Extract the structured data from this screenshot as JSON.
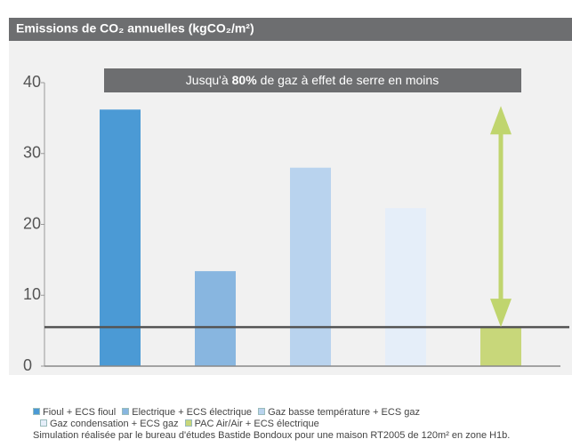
{
  "chart_data": {
    "type": "bar",
    "title": "Emissions de CO₂ annuelles (kgCO₂/m²)",
    "annotation": {
      "before": "Jusqu'à",
      "bold": "80%",
      "after": "de gaz à effet de serre en moins"
    },
    "series": [
      {
        "name": "Fioul + ECS fioul",
        "color": "#4b9ad5",
        "values": [
          36.2
        ]
      },
      {
        "name": "Electrique + ECS électrique",
        "color": "#88b6e0",
        "values": [
          13.4
        ]
      },
      {
        "name": "Gaz basse température + ECS gaz",
        "color": "#b9d3ee",
        "values": [
          28
        ]
      },
      {
        "name": "Gaz condensation + ECS gaz",
        "color": "#e5eef9",
        "values": [
          22.3
        ]
      },
      {
        "name": "PAC Air/Air + ECS électrique",
        "color": "#c8d77a",
        "values": [
          5.5
        ]
      }
    ],
    "ylim": [
      0,
      40
    ],
    "yticks": [
      0,
      10,
      20,
      30,
      40
    ],
    "footnote": "Simulation réalisée par le bureau d'études Bastide Bondoux pour une maison RT2005 de 120m² en zone H1b."
  }
}
